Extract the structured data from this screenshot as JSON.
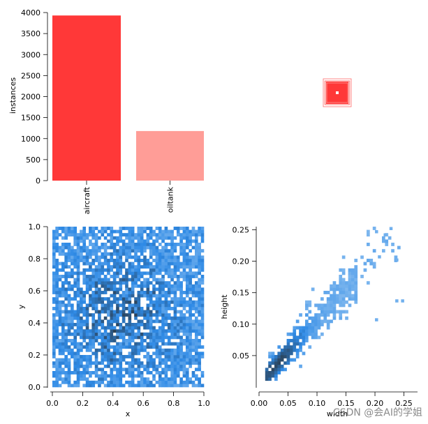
{
  "watermark": "CSDN @会AI的学姐",
  "colors": {
    "bar1": "#ff3838",
    "bar2": "#ff9d97",
    "hist": "#2e8ae6",
    "hist_dark": "#2c3e50"
  },
  "chart_data": [
    {
      "type": "bar",
      "categories": [
        "aircraft",
        "oiltank"
      ],
      "values": [
        3930,
        1180
      ],
      "ylabel": "instances",
      "xlabel": "",
      "ylim": [
        0,
        4000
      ],
      "yticks": [
        "0",
        "500",
        "1000",
        "1500",
        "2000",
        "2500",
        "3000",
        "3500",
        "4000"
      ]
    },
    {
      "type": "other",
      "description_visible": "overlapping box outlines centered near (0.5,0.5)"
    },
    {
      "type": "heatmap",
      "xlabel": "x",
      "ylabel": "y",
      "xlim": [
        0,
        1
      ],
      "ylim": [
        0,
        1
      ],
      "xticks": [
        "0.0",
        "0.2",
        "0.4",
        "0.6",
        "0.8",
        "1.0"
      ],
      "yticks": [
        "0.0",
        "0.2",
        "0.4",
        "0.6",
        "0.8",
        "1.0"
      ],
      "distribution": "roughly uniform over [0,1]x[0,1], slightly denser near center"
    },
    {
      "type": "heatmap",
      "xlabel": "width",
      "ylabel": "height",
      "xlim": [
        0,
        0.27
      ],
      "ylim": [
        0,
        0.26
      ],
      "xticks": [
        "0.00",
        "0.05",
        "0.10",
        "0.15",
        "0.20",
        "0.25"
      ],
      "yticks": [
        "0.05",
        "0.10",
        "0.15",
        "0.20",
        "0.25"
      ],
      "distribution": "strong positive correlation along width≈height, densest near 0.03"
    }
  ]
}
